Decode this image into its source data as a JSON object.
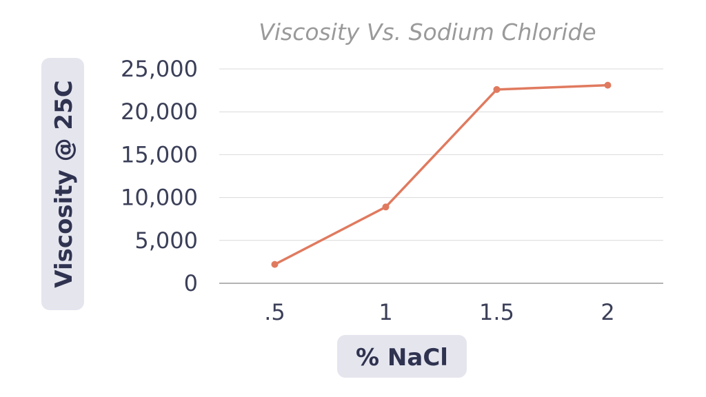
{
  "chart_data": {
    "type": "line",
    "title": "Viscosity Vs. Sodium Chloride",
    "xlabel": "% NaCl",
    "ylabel": "Viscosity @ 25C",
    "categories": [
      ".5",
      "1",
      "1.5",
      "2"
    ],
    "series": [
      {
        "values": [
          2200,
          8900,
          22600,
          23100
        ]
      }
    ],
    "ylim": [
      0,
      25000
    ],
    "yticks": [
      0,
      5000,
      10000,
      15000,
      20000,
      25000
    ],
    "ytick_labels": [
      "0",
      "5,000",
      "10,000",
      "15,000",
      "20,000",
      "25,000"
    ],
    "grid": true,
    "legend": "none",
    "line_color": "#e07a5f"
  }
}
